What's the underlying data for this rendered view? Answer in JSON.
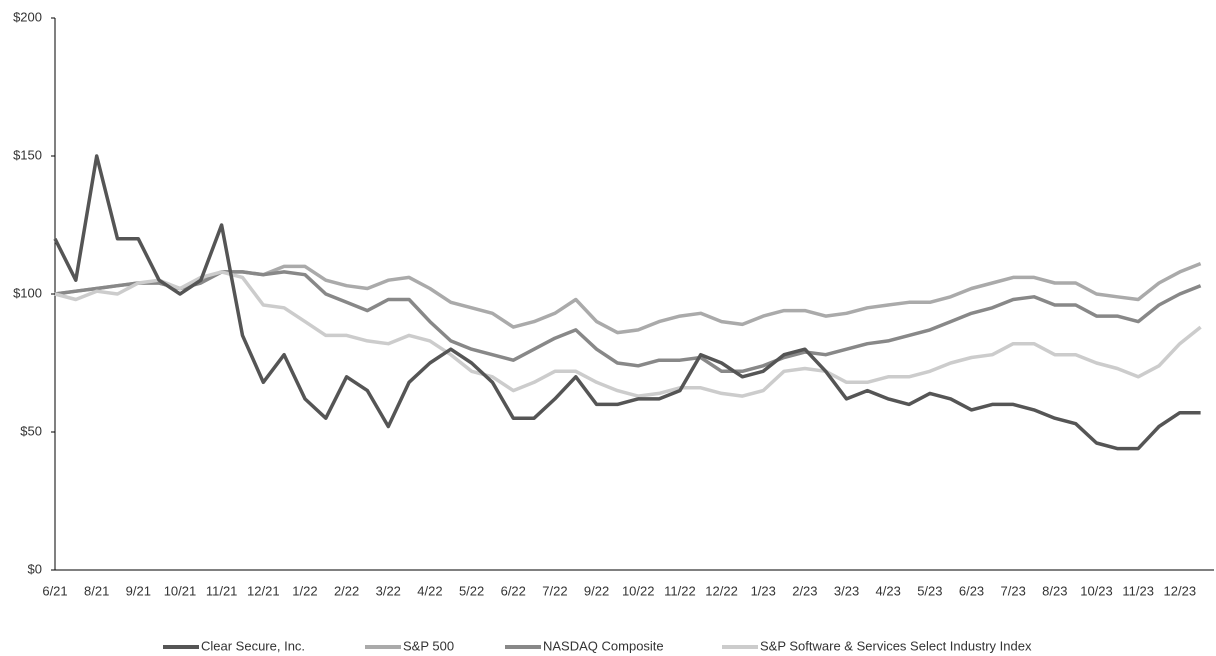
{
  "chart_data": {
    "type": "line",
    "categories": [
      "6/21",
      null,
      "8/21",
      null,
      "9/21",
      null,
      "10/21",
      null,
      "11/21",
      null,
      "12/21",
      null,
      "1/22",
      null,
      "2/22",
      null,
      "3/22",
      null,
      "4/22",
      null,
      "5/22",
      null,
      "6/22",
      null,
      "7/22",
      null,
      "9/22",
      null,
      "10/22",
      null,
      "11/22",
      null,
      "12/22",
      null,
      "1/23",
      null,
      "2/23",
      null,
      "3/23",
      null,
      "4/23",
      null,
      "5/23",
      null,
      "6/23",
      null,
      "7/23",
      null,
      "8/23",
      null,
      "10/23",
      null,
      "11/23",
      null,
      "12/23",
      null
    ],
    "series": [
      {
        "name": "Clear Secure, Inc.",
        "color": "#555555",
        "values": [
          120,
          105,
          150,
          120,
          120,
          105,
          100,
          105,
          125,
          85,
          68,
          78,
          62,
          55,
          70,
          65,
          52,
          68,
          75,
          80,
          75,
          68,
          55,
          55,
          62,
          70,
          60,
          60,
          62,
          62,
          65,
          78,
          75,
          70,
          72,
          78,
          80,
          72,
          62,
          65,
          62,
          60,
          64,
          62,
          58,
          60,
          60,
          58,
          55,
          53,
          46,
          44,
          44,
          52,
          57,
          57
        ]
      },
      {
        "name": "S&P 500",
        "color": "#aaaaaa",
        "values": [
          100,
          101,
          102,
          103,
          104,
          104,
          102,
          105,
          108,
          108,
          107,
          110,
          110,
          105,
          103,
          102,
          105,
          106,
          102,
          97,
          95,
          93,
          88,
          90,
          93,
          98,
          90,
          86,
          87,
          90,
          92,
          93,
          90,
          89,
          92,
          94,
          94,
          92,
          93,
          95,
          96,
          97,
          97,
          99,
          102,
          104,
          106,
          106,
          104,
          104,
          100,
          99,
          98,
          104,
          108,
          111
        ]
      },
      {
        "name": "NASDAQ Composite",
        "color": "#888888",
        "values": [
          100,
          101,
          102,
          103,
          104,
          104,
          102,
          104,
          108,
          108,
          107,
          108,
          107,
          100,
          97,
          94,
          98,
          98,
          90,
          83,
          80,
          78,
          76,
          80,
          84,
          87,
          80,
          75,
          74,
          76,
          76,
          77,
          72,
          72,
          74,
          77,
          79,
          78,
          80,
          82,
          83,
          85,
          87,
          90,
          93,
          95,
          98,
          99,
          96,
          96,
          92,
          92,
          90,
          96,
          100,
          103
        ]
      },
      {
        "name": "S&P Software & Services Select Industry Index",
        "color": "#cccccc",
        "values": [
          100,
          98,
          101,
          100,
          104,
          105,
          102,
          106,
          108,
          106,
          96,
          95,
          90,
          85,
          85,
          83,
          82,
          85,
          83,
          78,
          72,
          70,
          65,
          68,
          72,
          72,
          68,
          65,
          63,
          64,
          66,
          66,
          64,
          63,
          65,
          72,
          73,
          72,
          68,
          68,
          70,
          70,
          72,
          75,
          77,
          78,
          82,
          82,
          78,
          78,
          75,
          73,
          70,
          74,
          82,
          88
        ]
      }
    ],
    "ylim": [
      0,
      200
    ],
    "yticks": [
      {
        "value": 0,
        "label": "$0"
      },
      {
        "value": 50,
        "label": "$50"
      },
      {
        "value": 100,
        "label": "$100"
      },
      {
        "value": 150,
        "label": "$150"
      },
      {
        "value": 200,
        "label": "$200"
      }
    ],
    "grid": false
  }
}
